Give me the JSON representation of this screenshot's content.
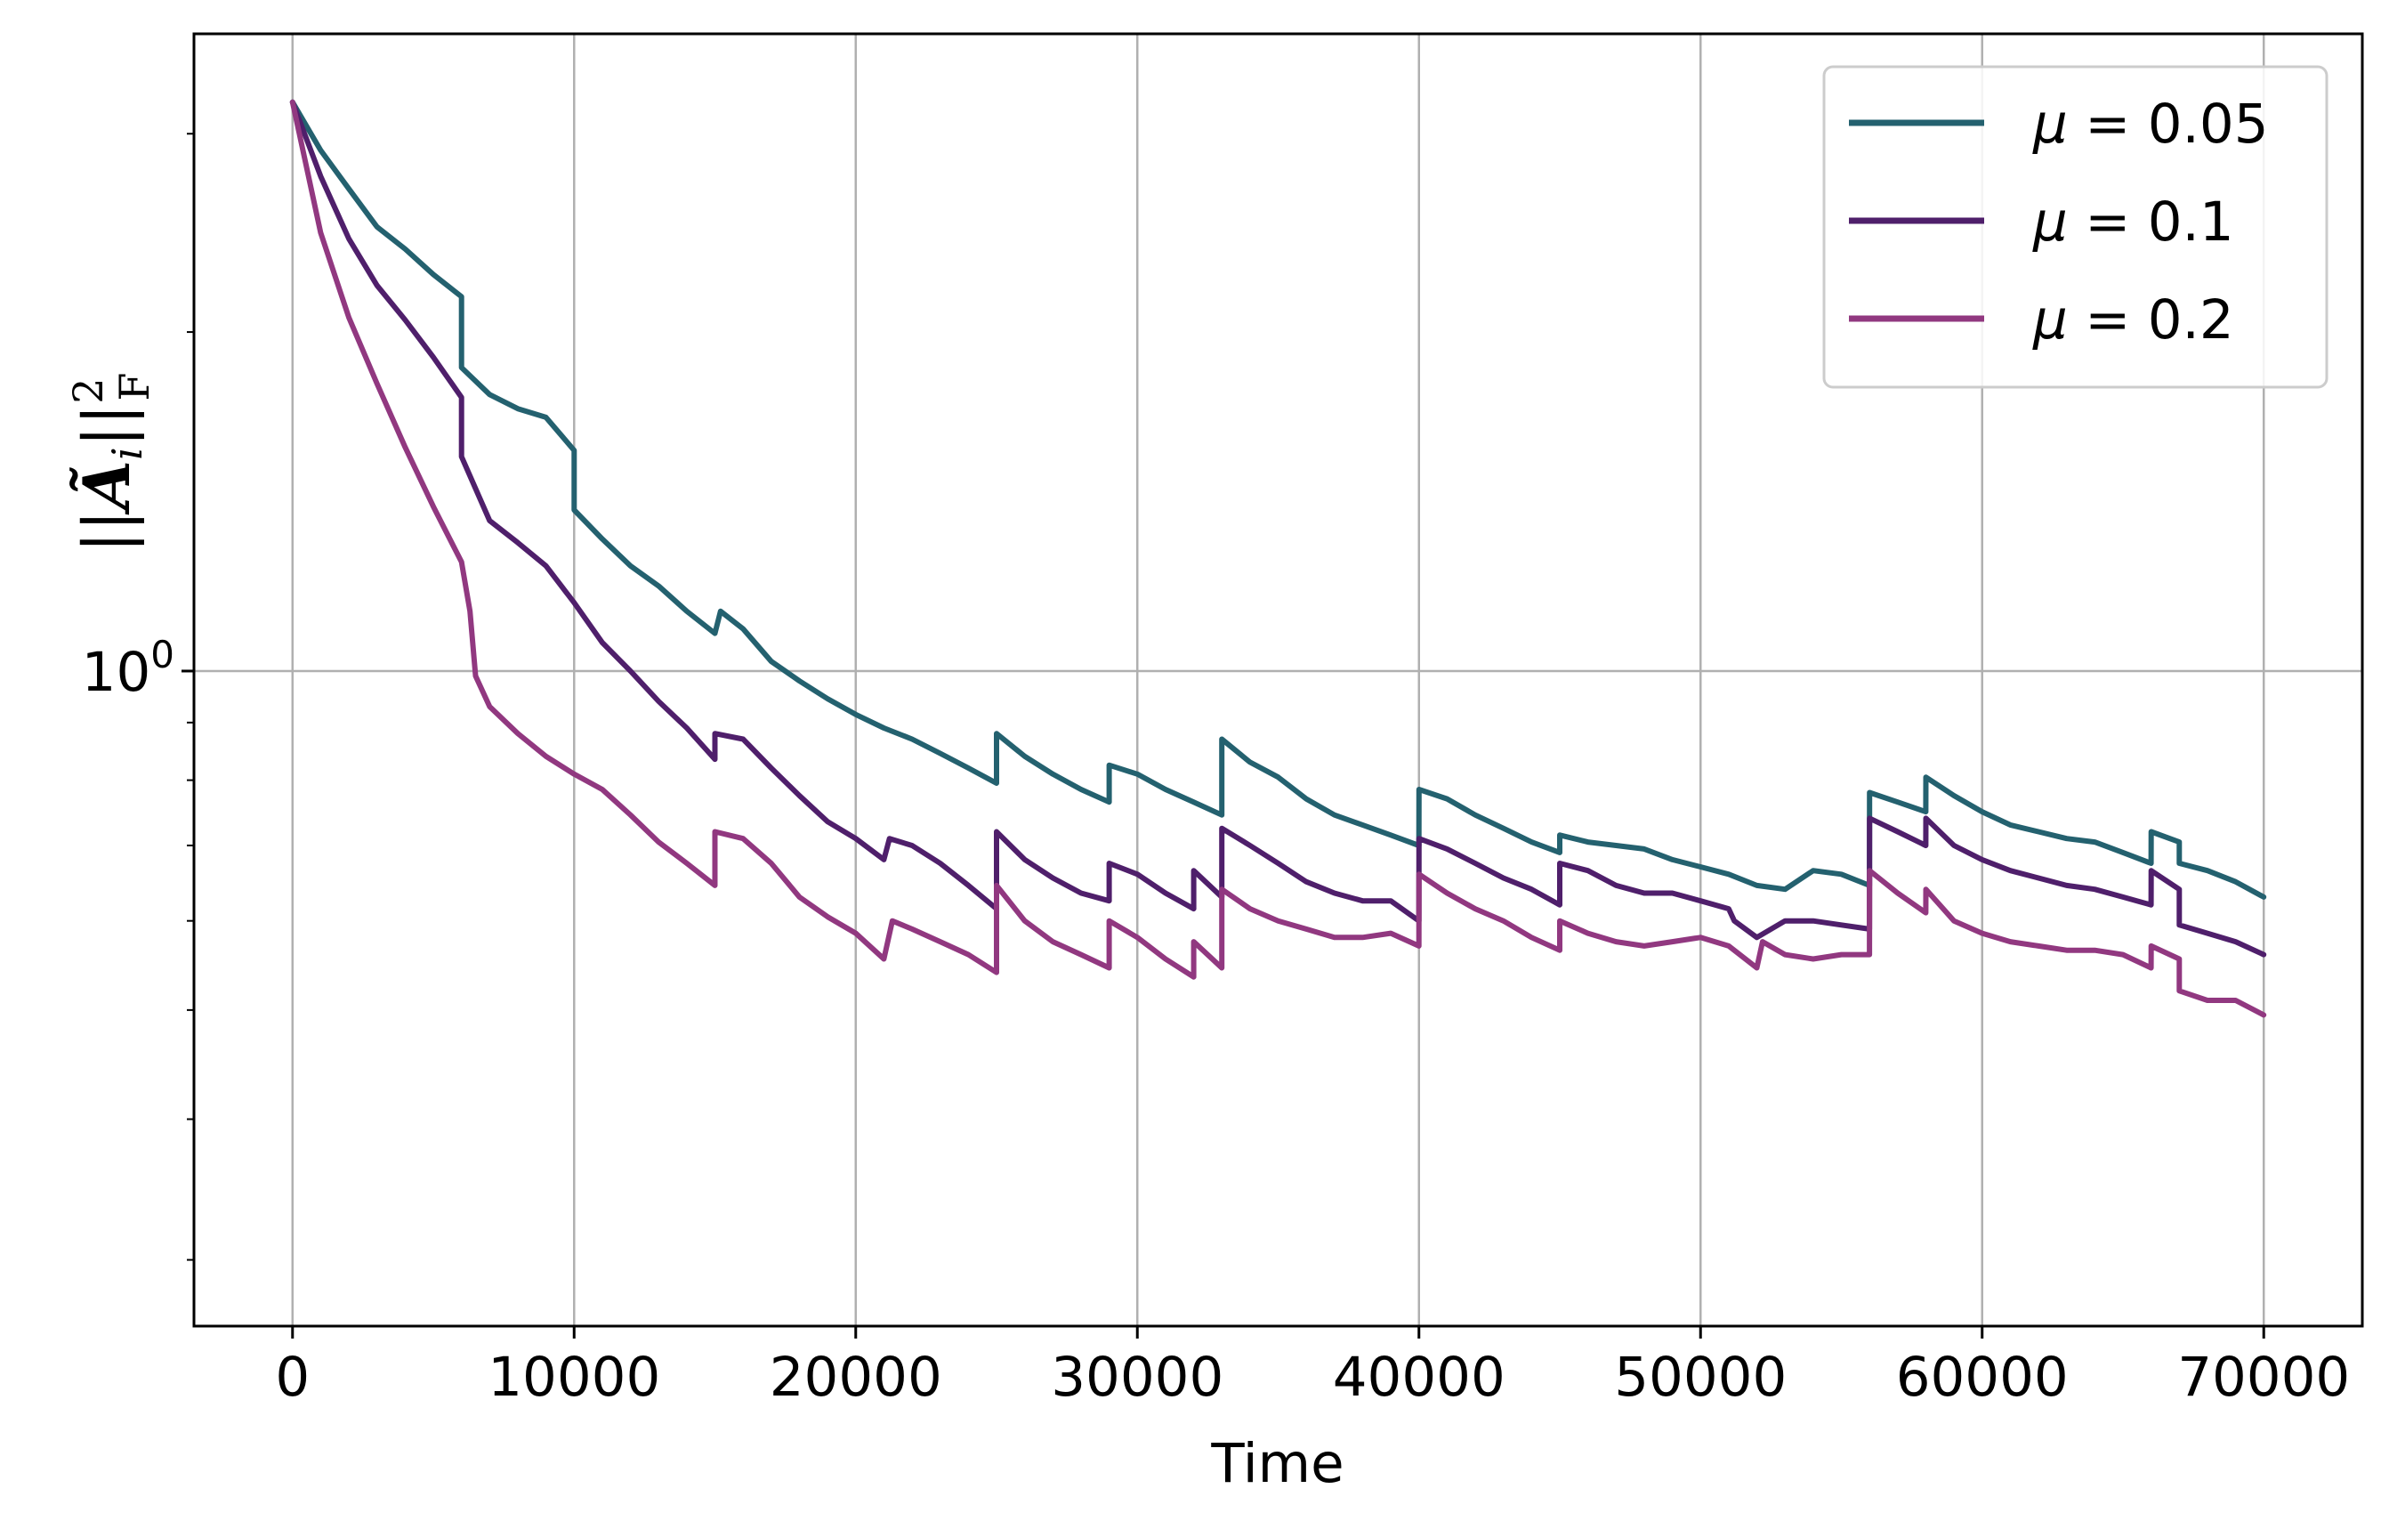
{
  "chart_data": {
    "type": "line",
    "title": "",
    "xlabel": "Time",
    "ylabel": "||Ã_i||²_F",
    "ylabel_parts": {
      "bars_open": "||",
      "symbol": "Ã",
      "subscript": "i",
      "bars_close": "||",
      "superscript": "2",
      "sub2": "F"
    },
    "xlim": [
      -3500,
      73500
    ],
    "ylim": [
      0.262,
      3.68
    ],
    "yscale": "log",
    "grid": true,
    "legend_position": "top-right",
    "x_ticks": [
      0,
      10000,
      20000,
      30000,
      40000,
      50000,
      60000,
      70000
    ],
    "x_tick_labels": [
      "0",
      "10000",
      "20000",
      "30000",
      "40000",
      "50000",
      "60000",
      "70000"
    ],
    "y_major_ticks": [
      1
    ],
    "y_tick_labels": [
      {
        "base": "10",
        "exp": "0"
      }
    ],
    "y_minor_ticks": [
      0.3,
      0.4,
      0.5,
      0.6,
      0.7,
      0.8,
      0.9,
      2,
      3
    ],
    "colors": {
      "mu_0.05": "#24616f",
      "mu_0.1": "#4f1f6b",
      "mu_0.2": "#913880"
    },
    "series": [
      {
        "name": "μ = 0.05",
        "color": "#24616f",
        "points": [
          [
            0,
            3.2
          ],
          [
            1000,
            2.9
          ],
          [
            2000,
            2.68
          ],
          [
            3000,
            2.48
          ],
          [
            4000,
            2.37
          ],
          [
            5000,
            2.25
          ],
          [
            6000,
            2.15
          ],
          [
            6001,
            1.86
          ],
          [
            7000,
            1.76
          ],
          [
            8000,
            1.71
          ],
          [
            9000,
            1.68
          ],
          [
            10000,
            1.57
          ],
          [
            10001,
            1.39
          ],
          [
            11000,
            1.31
          ],
          [
            12000,
            1.24
          ],
          [
            13000,
            1.19
          ],
          [
            14000,
            1.13
          ],
          [
            15000,
            1.08
          ],
          [
            15200,
            1.13
          ],
          [
            16000,
            1.09
          ],
          [
            17000,
            1.02
          ],
          [
            18000,
            0.98
          ],
          [
            19000,
            0.945
          ],
          [
            20000,
            0.915
          ],
          [
            21000,
            0.89
          ],
          [
            22000,
            0.87
          ],
          [
            23000,
            0.845
          ],
          [
            24000,
            0.82
          ],
          [
            25000,
            0.795
          ],
          [
            25001,
            0.88
          ],
          [
            26000,
            0.84
          ],
          [
            27000,
            0.81
          ],
          [
            28000,
            0.785
          ],
          [
            29000,
            0.765
          ],
          [
            29001,
            0.825
          ],
          [
            30000,
            0.81
          ],
          [
            31000,
            0.785
          ],
          [
            32000,
            0.765
          ],
          [
            33000,
            0.745
          ],
          [
            33001,
            0.87
          ],
          [
            34000,
            0.83
          ],
          [
            35000,
            0.805
          ],
          [
            36000,
            0.77
          ],
          [
            37000,
            0.745
          ],
          [
            38000,
            0.73
          ],
          [
            39000,
            0.715
          ],
          [
            40000,
            0.7
          ],
          [
            40001,
            0.785
          ],
          [
            41000,
            0.77
          ],
          [
            42000,
            0.745
          ],
          [
            43000,
            0.725
          ],
          [
            44000,
            0.705
          ],
          [
            45000,
            0.69
          ],
          [
            45001,
            0.715
          ],
          [
            46000,
            0.705
          ],
          [
            47000,
            0.7
          ],
          [
            48000,
            0.695
          ],
          [
            49000,
            0.68
          ],
          [
            50000,
            0.67
          ],
          [
            51000,
            0.66
          ],
          [
            52000,
            0.645
          ],
          [
            53000,
            0.64
          ],
          [
            54000,
            0.665
          ],
          [
            55000,
            0.66
          ],
          [
            56000,
            0.645
          ],
          [
            56001,
            0.78
          ],
          [
            57000,
            0.765
          ],
          [
            58000,
            0.75
          ],
          [
            58001,
            0.805
          ],
          [
            59000,
            0.775
          ],
          [
            60000,
            0.75
          ],
          [
            61000,
            0.73
          ],
          [
            62000,
            0.72
          ],
          [
            63000,
            0.71
          ],
          [
            64000,
            0.705
          ],
          [
            65000,
            0.69
          ],
          [
            66000,
            0.675
          ],
          [
            66001,
            0.72
          ],
          [
            67000,
            0.705
          ],
          [
            67001,
            0.675
          ],
          [
            68000,
            0.665
          ],
          [
            69000,
            0.65
          ],
          [
            70000,
            0.63
          ]
        ]
      },
      {
        "name": "μ = 0.1",
        "color": "#4f1f6b",
        "points": [
          [
            0,
            3.2
          ],
          [
            1000,
            2.75
          ],
          [
            2000,
            2.42
          ],
          [
            3000,
            2.2
          ],
          [
            4000,
            2.05
          ],
          [
            5000,
            1.9
          ],
          [
            6000,
            1.75
          ],
          [
            6001,
            1.55
          ],
          [
            7000,
            1.36
          ],
          [
            8000,
            1.3
          ],
          [
            9000,
            1.24
          ],
          [
            10000,
            1.15
          ],
          [
            11000,
            1.06
          ],
          [
            12000,
            1.0
          ],
          [
            13000,
            0.94
          ],
          [
            14000,
            0.89
          ],
          [
            15000,
            0.835
          ],
          [
            15001,
            0.88
          ],
          [
            16000,
            0.87
          ],
          [
            17000,
            0.82
          ],
          [
            18000,
            0.775
          ],
          [
            19000,
            0.735
          ],
          [
            20000,
            0.71
          ],
          [
            21000,
            0.68
          ],
          [
            21200,
            0.71
          ],
          [
            22000,
            0.7
          ],
          [
            23000,
            0.675
          ],
          [
            24000,
            0.645
          ],
          [
            25000,
            0.615
          ],
          [
            25001,
            0.72
          ],
          [
            26000,
            0.68
          ],
          [
            27000,
            0.655
          ],
          [
            28000,
            0.635
          ],
          [
            29000,
            0.625
          ],
          [
            29001,
            0.675
          ],
          [
            30000,
            0.66
          ],
          [
            31000,
            0.635
          ],
          [
            32000,
            0.615
          ],
          [
            32001,
            0.665
          ],
          [
            33000,
            0.63
          ],
          [
            33001,
            0.725
          ],
          [
            34000,
            0.7
          ],
          [
            35000,
            0.675
          ],
          [
            36000,
            0.65
          ],
          [
            37000,
            0.635
          ],
          [
            38000,
            0.625
          ],
          [
            39000,
            0.625
          ],
          [
            40000,
            0.6
          ],
          [
            40001,
            0.71
          ],
          [
            41000,
            0.695
          ],
          [
            42000,
            0.675
          ],
          [
            43000,
            0.655
          ],
          [
            44000,
            0.64
          ],
          [
            45000,
            0.62
          ],
          [
            45001,
            0.675
          ],
          [
            46000,
            0.665
          ],
          [
            47000,
            0.645
          ],
          [
            48000,
            0.635
          ],
          [
            49000,
            0.635
          ],
          [
            50000,
            0.625
          ],
          [
            51000,
            0.615
          ],
          [
            51200,
            0.6
          ],
          [
            52000,
            0.58
          ],
          [
            53000,
            0.6
          ],
          [
            54000,
            0.6
          ],
          [
            55000,
            0.595
          ],
          [
            56000,
            0.59
          ],
          [
            56001,
            0.74
          ],
          [
            57000,
            0.72
          ],
          [
            58000,
            0.7
          ],
          [
            58001,
            0.74
          ],
          [
            59000,
            0.7
          ],
          [
            60000,
            0.68
          ],
          [
            61000,
            0.665
          ],
          [
            62000,
            0.655
          ],
          [
            63000,
            0.645
          ],
          [
            64000,
            0.64
          ],
          [
            65000,
            0.63
          ],
          [
            66000,
            0.62
          ],
          [
            66001,
            0.665
          ],
          [
            67000,
            0.64
          ],
          [
            67001,
            0.595
          ],
          [
            68000,
            0.585
          ],
          [
            69000,
            0.575
          ],
          [
            70000,
            0.56
          ]
        ]
      },
      {
        "name": "μ = 0.2",
        "color": "#913880",
        "points": [
          [
            0,
            3.2
          ],
          [
            1000,
            2.45
          ],
          [
            2000,
            2.06
          ],
          [
            3000,
            1.8
          ],
          [
            4000,
            1.58
          ],
          [
            5000,
            1.4
          ],
          [
            6000,
            1.25
          ],
          [
            6300,
            1.13
          ],
          [
            6500,
            0.99
          ],
          [
            7000,
            0.93
          ],
          [
            8000,
            0.88
          ],
          [
            9000,
            0.84
          ],
          [
            10000,
            0.81
          ],
          [
            11000,
            0.785
          ],
          [
            12000,
            0.745
          ],
          [
            13000,
            0.705
          ],
          [
            14000,
            0.675
          ],
          [
            15000,
            0.645
          ],
          [
            15001,
            0.72
          ],
          [
            16000,
            0.71
          ],
          [
            17000,
            0.675
          ],
          [
            18000,
            0.63
          ],
          [
            19000,
            0.605
          ],
          [
            20000,
            0.585
          ],
          [
            21000,
            0.555
          ],
          [
            21300,
            0.6
          ],
          [
            22000,
            0.59
          ],
          [
            23000,
            0.575
          ],
          [
            24000,
            0.56
          ],
          [
            25000,
            0.54
          ],
          [
            25001,
            0.645
          ],
          [
            26000,
            0.6
          ],
          [
            27000,
            0.575
          ],
          [
            28000,
            0.56
          ],
          [
            29000,
            0.545
          ],
          [
            29001,
            0.6
          ],
          [
            30000,
            0.58
          ],
          [
            31000,
            0.555
          ],
          [
            32000,
            0.535
          ],
          [
            32001,
            0.575
          ],
          [
            33000,
            0.545
          ],
          [
            33001,
            0.64
          ],
          [
            34000,
            0.615
          ],
          [
            35000,
            0.6
          ],
          [
            36000,
            0.59
          ],
          [
            37000,
            0.58
          ],
          [
            38000,
            0.58
          ],
          [
            39000,
            0.585
          ],
          [
            40000,
            0.57
          ],
          [
            40001,
            0.66
          ],
          [
            41000,
            0.635
          ],
          [
            42000,
            0.615
          ],
          [
            43000,
            0.6
          ],
          [
            44000,
            0.58
          ],
          [
            45000,
            0.565
          ],
          [
            45001,
            0.6
          ],
          [
            46000,
            0.585
          ],
          [
            47000,
            0.575
          ],
          [
            48000,
            0.57
          ],
          [
            49000,
            0.575
          ],
          [
            50000,
            0.58
          ],
          [
            51000,
            0.57
          ],
          [
            52000,
            0.545
          ],
          [
            52200,
            0.575
          ],
          [
            53000,
            0.56
          ],
          [
            54000,
            0.555
          ],
          [
            55000,
            0.56
          ],
          [
            56000,
            0.56
          ],
          [
            56001,
            0.665
          ],
          [
            57000,
            0.635
          ],
          [
            58000,
            0.61
          ],
          [
            58001,
            0.64
          ],
          [
            59000,
            0.6
          ],
          [
            60000,
            0.585
          ],
          [
            61000,
            0.575
          ],
          [
            62000,
            0.57
          ],
          [
            63000,
            0.565
          ],
          [
            64000,
            0.565
          ],
          [
            65000,
            0.56
          ],
          [
            66000,
            0.545
          ],
          [
            66001,
            0.57
          ],
          [
            67000,
            0.555
          ],
          [
            67001,
            0.52
          ],
          [
            68000,
            0.51
          ],
          [
            69000,
            0.51
          ],
          [
            70000,
            0.495
          ]
        ]
      }
    ]
  }
}
